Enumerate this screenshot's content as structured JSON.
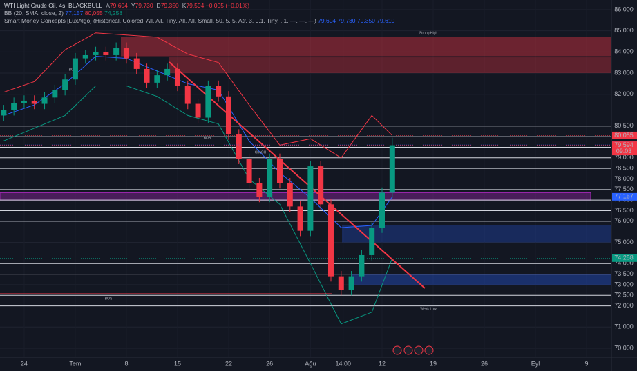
{
  "header": {
    "title": "WTI Light Crude Oil, 4s, BLACKBULL",
    "ohlc": [
      {
        "k": "A",
        "v": "79,604"
      },
      {
        "k": "Y",
        "v": "79,730"
      },
      {
        "k": "D",
        "v": "79,350"
      },
      {
        "k": "K",
        "v": "79,594"
      }
    ],
    "change": "−0,005 (−0,01%)",
    "bb_label": "BB (20, SMA, close, 2)",
    "bb_values": [
      "77,157",
      "80,055",
      "74,258"
    ],
    "smc_label": "Smart Money Concepts [LuxAlgo] (Historical, Colored, All, All, Tiny, All, All, Small, 50, 5, 5, Atr, 3, 0.1, Tiny, , 1, —, —, —)",
    "smc_values": [
      "79,604",
      "79,730",
      "79,350",
      "79,610"
    ]
  },
  "chart_data": {
    "type": "candlestick",
    "x": [
      -2,
      -1,
      0,
      1,
      2,
      3,
      4,
      5,
      6,
      7,
      8,
      9,
      10,
      11,
      12,
      13,
      14,
      15,
      16,
      17,
      18,
      19,
      20,
      21,
      22,
      23,
      24,
      25,
      26,
      27,
      28,
      29,
      30,
      31,
      32,
      33,
      34,
      35,
      36
    ],
    "open": [
      81000,
      81250,
      81600,
      81700,
      81550,
      81850,
      82200,
      82700,
      83700,
      83850,
      84000,
      83850,
      84200,
      83700,
      83200,
      82550,
      82900,
      83200,
      82400,
      81550,
      80900,
      82400,
      81900,
      80100,
      78950,
      77800,
      77150,
      78950,
      77800,
      76700,
      75550,
      78600,
      76800,
      73400,
      72750,
      73400,
      74400,
      75700,
      77350
    ],
    "high": [
      81500,
      81850,
      81950,
      81950,
      82100,
      82450,
      82950,
      83950,
      84100,
      84250,
      84250,
      84450,
      84450,
      83950,
      83450,
      83150,
      83450,
      83450,
      82650,
      81800,
      82650,
      82650,
      82150,
      80350,
      79200,
      78050,
      79200,
      79200,
      78050,
      76950,
      78850,
      78850,
      77050,
      73650,
      73650,
      74650,
      75950,
      77600,
      79950
    ],
    "low": [
      80750,
      81000,
      81350,
      81300,
      81300,
      81600,
      81950,
      82450,
      83450,
      83600,
      83600,
      83600,
      83450,
      82950,
      82300,
      82300,
      82650,
      82150,
      81300,
      80650,
      80650,
      81650,
      79850,
      78700,
      77550,
      76900,
      76900,
      77550,
      76450,
      75300,
      75300,
      76550,
      73150,
      72500,
      72500,
      73150,
      74150,
      75450,
      77100
    ],
    "close": [
      81250,
      81600,
      81700,
      81550,
      81850,
      82200,
      82700,
      83700,
      83850,
      84000,
      83850,
      84200,
      83700,
      83200,
      82550,
      82900,
      83200,
      82400,
      81550,
      80900,
      82400,
      81900,
      80100,
      78950,
      77800,
      77150,
      78950,
      77800,
      76700,
      75550,
      78600,
      76800,
      73400,
      72750,
      73400,
      74400,
      75700,
      77350,
      79594
    ],
    "up_color": "#089981",
    "down_color": "#f23645",
    "series": [
      {
        "name": "BB upper",
        "color": "#f23645",
        "x": [
          -2,
          1,
          4,
          7,
          10,
          13,
          16,
          19,
          22,
          25,
          28,
          31,
          34,
          36
        ],
        "values": [
          82100,
          82600,
          84100,
          84900,
          84800,
          84700,
          83900,
          83500,
          81500,
          79600,
          79900,
          79000,
          81000,
          80055
        ]
      },
      {
        "name": "BB basis",
        "color": "#2962ff",
        "x": [
          -2,
          1,
          4,
          7,
          10,
          13,
          16,
          19,
          22,
          25,
          28,
          31,
          34,
          36
        ],
        "values": [
          81000,
          81500,
          82500,
          83800,
          83700,
          83100,
          82500,
          82200,
          79800,
          78300,
          77100,
          75700,
          75800,
          77157
        ]
      },
      {
        "name": "BB lower",
        "color": "#089981",
        "x": [
          -2,
          1,
          4,
          7,
          10,
          13,
          16,
          19,
          22,
          25,
          28,
          31,
          34,
          36
        ],
        "values": [
          79800,
          80400,
          81000,
          82400,
          82400,
          81900,
          81000,
          80600,
          78000,
          76800,
          74000,
          71150,
          71700,
          74258
        ]
      }
    ],
    "zones": [
      {
        "from": 83800,
        "to": 84700,
        "color": "#f2364566"
      },
      {
        "from": 83000,
        "to": 83750,
        "color": "#f2364555"
      },
      {
        "from": 77000,
        "to": 77350,
        "color": "#9c27b066"
      },
      {
        "from": 75000,
        "to": 75800,
        "color": "#2962ff44"
      },
      {
        "from": 73000,
        "to": 73500,
        "color": "#2962ff55"
      }
    ],
    "levels": [
      72000,
      72500,
      73500,
      74000,
      76000,
      76500,
      77000,
      77500,
      78000,
      78500,
      79000,
      79500,
      80000,
      80500
    ],
    "annotations": [
      "Strong High",
      "Weak Low",
      "BOS",
      "BOS",
      "ChoCH",
      "BOS"
    ],
    "markers": [
      {
        "value": 80055,
        "label": "80,055",
        "color": "#f23645"
      },
      {
        "value": 79610,
        "label": "79,610",
        "color": "#2962ff"
      },
      {
        "value": 79594,
        "label": "79,594",
        "sub": "09:03",
        "color": "#f23645"
      },
      {
        "value": 77157,
        "label": "77,157",
        "color": "#2962ff"
      },
      {
        "value": 74258,
        "label": "74,258",
        "color": "#089981"
      }
    ],
    "ylim": [
      69576,
      86456
    ],
    "yticks": [
      {
        "value": 70000,
        "label": "70,000"
      },
      {
        "value": 71000,
        "label": "71,000"
      },
      {
        "value": 72000,
        "label": "72,000"
      },
      {
        "value": 72500,
        "label": "72,500"
      },
      {
        "value": 73000,
        "label": "73,000"
      },
      {
        "value": 73500,
        "label": "73,500"
      },
      {
        "value": 74000,
        "label": "74,000"
      },
      {
        "value": 75000,
        "label": "75,000"
      },
      {
        "value": 76000,
        "label": "76,000"
      },
      {
        "value": 76500,
        "label": "76,500"
      },
      {
        "value": 77000,
        "label": "77,000"
      },
      {
        "value": 77500,
        "label": "77,500"
      },
      {
        "value": 78000,
        "label": "78,000"
      },
      {
        "value": 78500,
        "label": "78,500"
      },
      {
        "value": 79000,
        "label": "79,000"
      },
      {
        "value": 79500,
        "label": "79,500"
      },
      {
        "value": 80000,
        "label": "80,000"
      },
      {
        "value": 80500,
        "label": "80,500"
      },
      {
        "value": 82000,
        "label": "82,000"
      },
      {
        "value": 83000,
        "label": "83,000"
      },
      {
        "value": 84000,
        "label": "84,000"
      },
      {
        "value": 85000,
        "label": "85,000"
      },
      {
        "value": 86000,
        "label": "86,000"
      }
    ],
    "xlim": [
      -2.36,
      57.43
    ],
    "xticks": [
      0,
      {
        "value": 5,
        "label": "Tem"
      },
      {
        "value": 10,
        "label": "8"
      },
      {
        "value": 15,
        "label": "15"
      },
      {
        "value": 20,
        "label": "22"
      },
      {
        "value": 24,
        "label": "26"
      },
      {
        "value": 28,
        "label": "Ağu"
      },
      {
        "value": 31.2,
        "label": "14:00"
      },
      {
        "value": 35,
        "label": "12"
      },
      {
        "value": 40,
        "label": "19"
      },
      {
        "value": 45,
        "label": "26"
      },
      {
        "value": 50,
        "label": "Eyl"
      },
      {
        "value": 55,
        "label": "9"
      }
    ],
    "xtick_first_label": "24",
    "grid": true
  }
}
